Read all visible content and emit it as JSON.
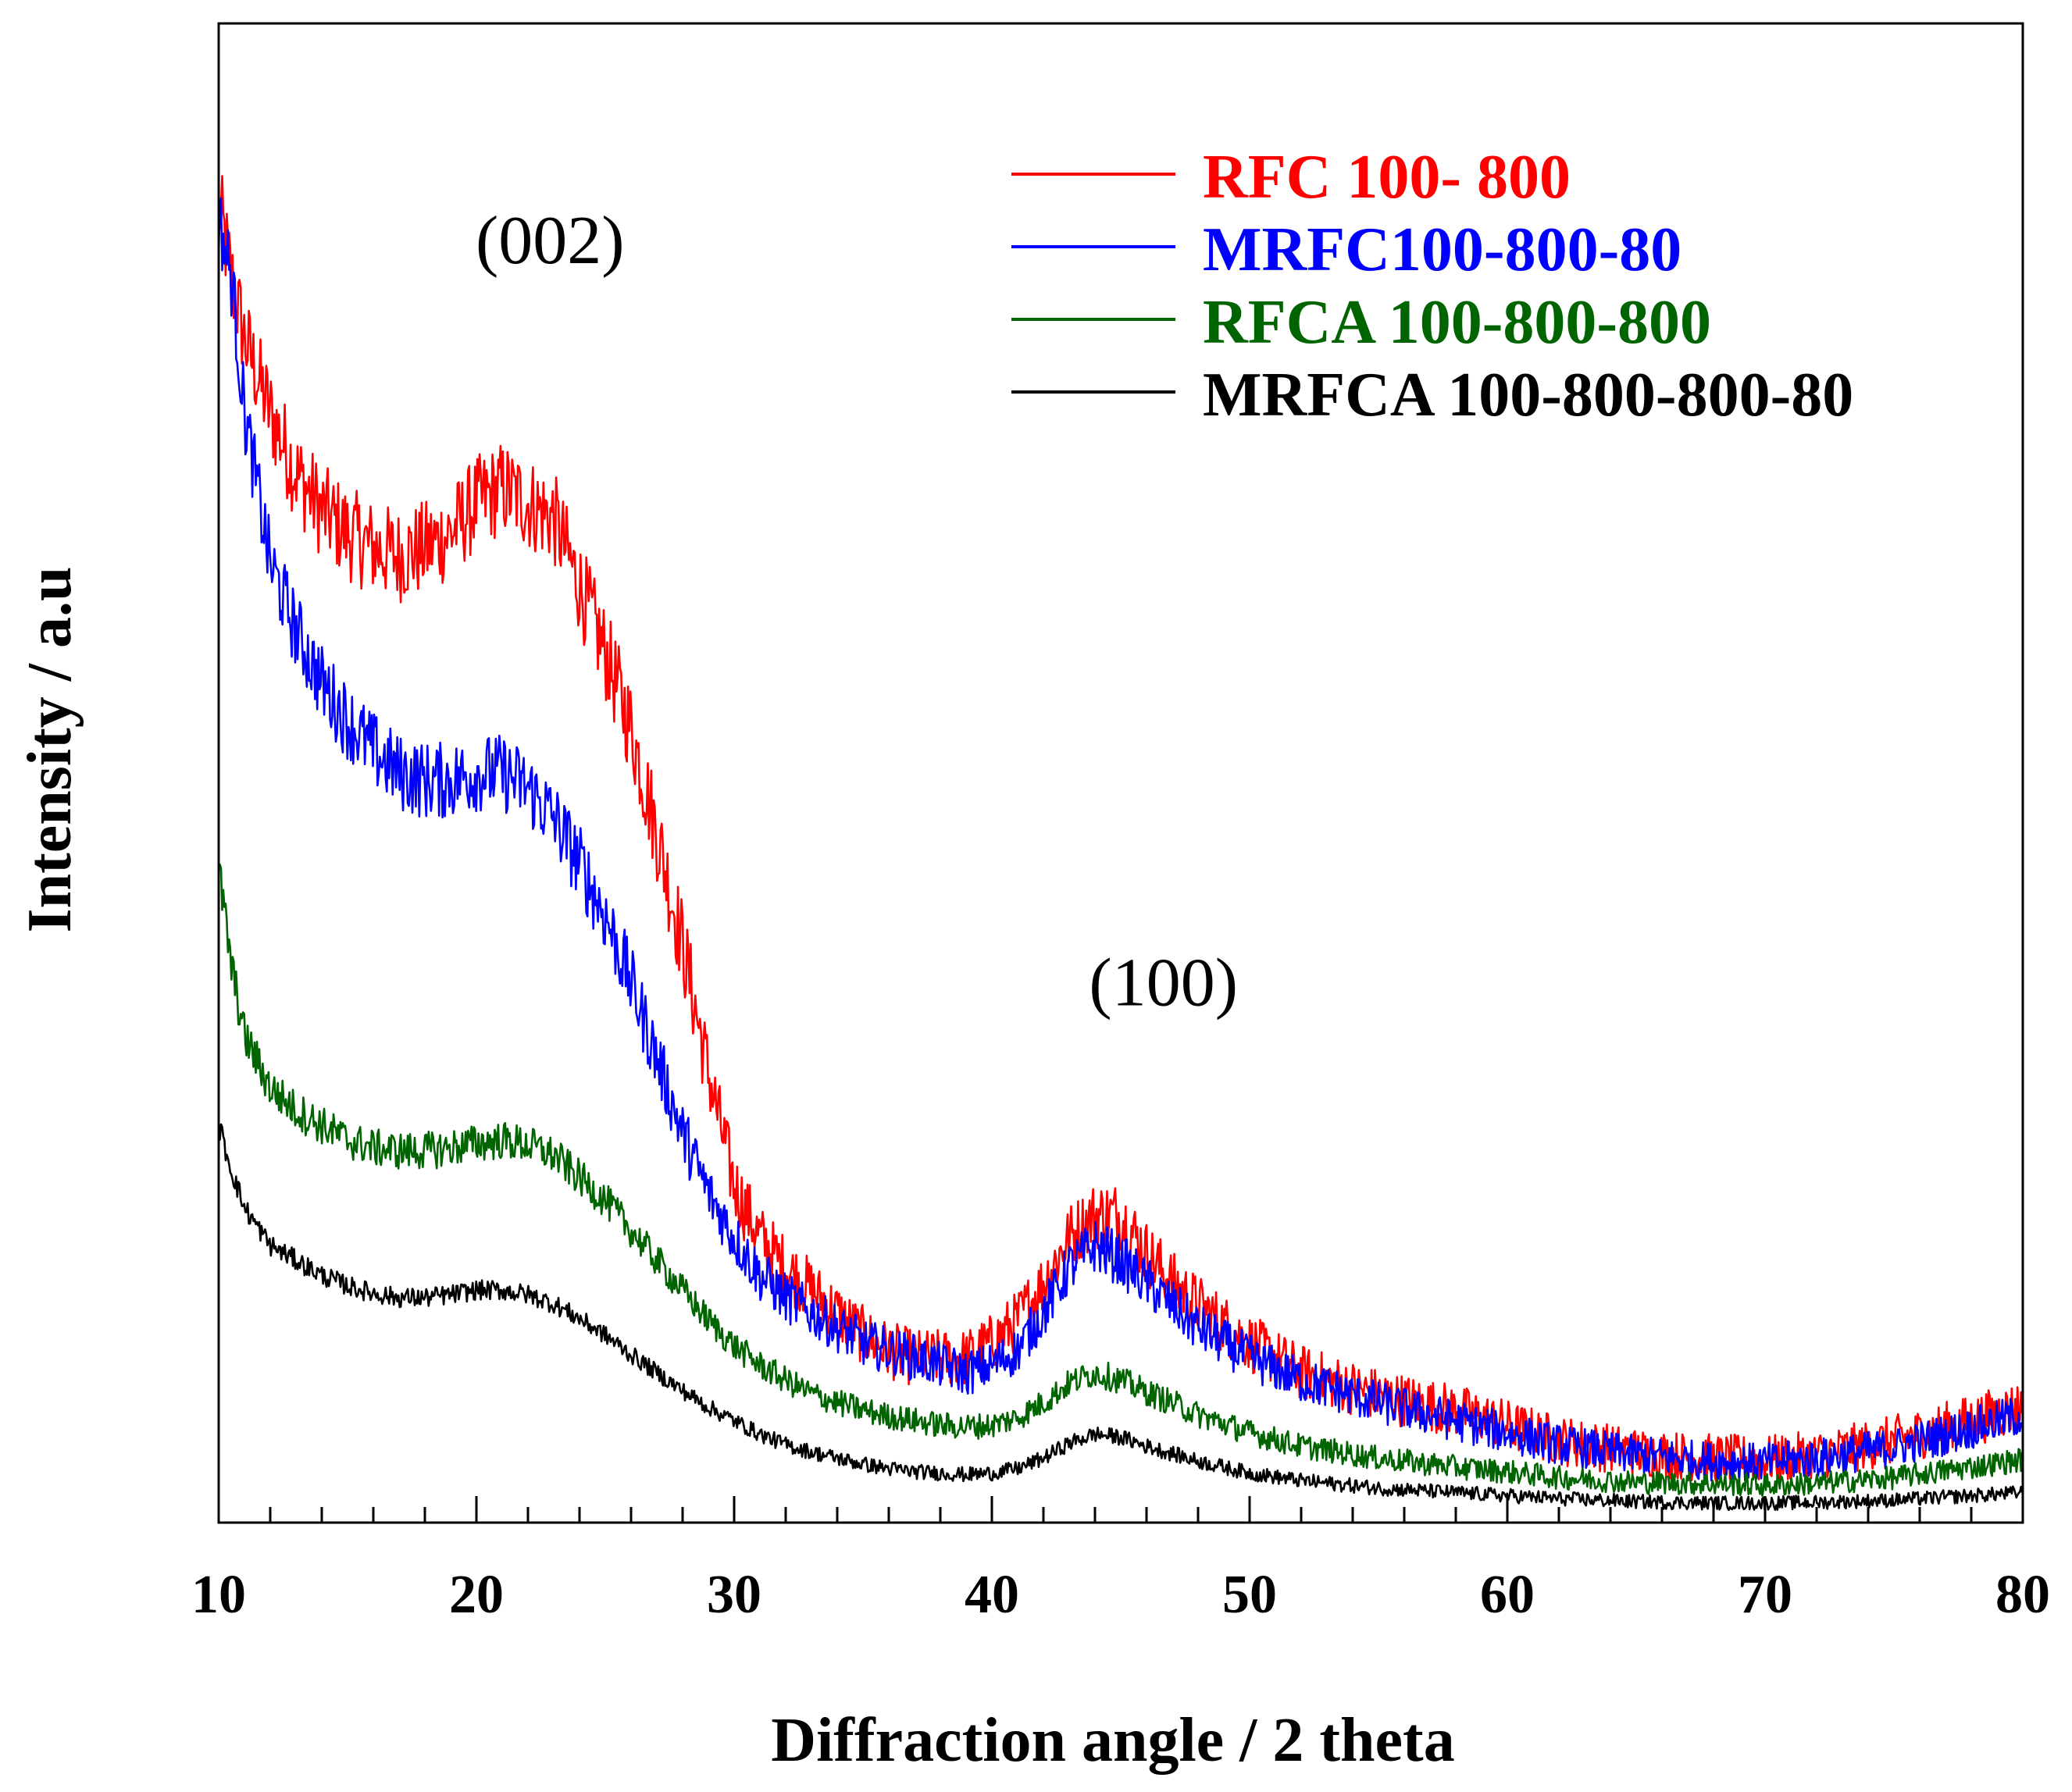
{
  "chart_data": {
    "type": "line",
    "title": "",
    "xlabel": "Diffraction angle / 2 theta",
    "ylabel": "Intensity / a.u",
    "xlim": [
      10,
      80
    ],
    "ylim": [
      0,
      100
    ],
    "x_ticks": [
      10,
      20,
      30,
      40,
      50,
      60,
      70,
      80
    ],
    "x_minor_step": 2,
    "y_ticks_visible": false,
    "legend_position": "top-right",
    "annotations": [
      {
        "text": "(002)",
        "x": 23,
        "y": 84
      },
      {
        "text": "(100)",
        "x": 46.8,
        "y": 34.5
      }
    ],
    "series": [
      {
        "name": "RFC 100- 800",
        "color": "#ff0000",
        "noise": 3.2,
        "x": [
          10,
          10.5,
          11,
          12,
          13,
          14,
          15,
          16,
          17,
          18,
          19,
          20,
          21,
          22,
          23,
          24,
          25,
          26,
          27,
          28,
          29,
          30,
          31,
          32,
          33,
          34,
          35,
          36,
          37,
          38,
          39,
          40,
          41,
          42,
          43,
          44,
          45,
          46,
          47,
          48,
          50,
          52,
          55,
          58,
          60,
          62,
          65,
          68,
          70,
          72,
          75,
          78,
          80
        ],
        "y": [
          88,
          83,
          79,
          74,
          70,
          67.5,
          66,
          65,
          64.5,
          65,
          66,
          68,
          69,
          68,
          67,
          62.5,
          58,
          53,
          46,
          38.5,
          30,
          22.5,
          19,
          17,
          15.5,
          14,
          12.5,
          11.5,
          11,
          11,
          11,
          12,
          13.5,
          16,
          19,
          20.5,
          20.5,
          18,
          16,
          14.5,
          12,
          10,
          8.5,
          7.5,
          6.5,
          5.5,
          4.7,
          4.3,
          4.2,
          4.5,
          5.5,
          6.8,
          7.8
        ]
      },
      {
        "name": "MRFC100-800-80",
        "color": "#0000ff",
        "noise": 2.6,
        "x": [
          10,
          10.5,
          11,
          12,
          13,
          14,
          15,
          16,
          17,
          18,
          19,
          20,
          21,
          22,
          23,
          24,
          25,
          26,
          27,
          28,
          29,
          30,
          31,
          32,
          33,
          34,
          35,
          36,
          37,
          38,
          39,
          40,
          41,
          42,
          43,
          44,
          45,
          46,
          47,
          48,
          50,
          52,
          55,
          58,
          60,
          62,
          65,
          68,
          70,
          72,
          75,
          78,
          80
        ],
        "y": [
          87,
          83,
          74,
          64,
          59.5,
          56,
          53.5,
          51.5,
          50,
          49.5,
          49.5,
          50,
          50,
          49,
          47,
          44,
          40.5,
          36,
          31,
          26,
          22,
          19,
          16.5,
          15,
          14,
          13,
          12,
          11.5,
          11,
          10.5,
          10,
          10.5,
          11.5,
          14,
          17,
          18.5,
          17.5,
          16,
          14.5,
          13,
          11,
          9.5,
          8,
          6.8,
          6,
          5.2,
          4.5,
          4.1,
          4,
          4.3,
          5,
          6.3,
          7.2
        ]
      },
      {
        "name": "RFCA 100-800-800",
        "color": "#006400",
        "noise": 1.6,
        "x": [
          10,
          10.5,
          11,
          12,
          13,
          14,
          15,
          16,
          17,
          18,
          19,
          20,
          21,
          22,
          23,
          24,
          25,
          26,
          27,
          28,
          29,
          30,
          31,
          32,
          33,
          34,
          35,
          36,
          37,
          38,
          39,
          40,
          41,
          42,
          43,
          44,
          45,
          46,
          47,
          48,
          50,
          52,
          55,
          58,
          60,
          62,
          65,
          68,
          70,
          72,
          75,
          78,
          80
        ],
        "y": [
          43.5,
          37,
          32.5,
          29,
          27.5,
          26.5,
          25.5,
          25,
          24.8,
          24.8,
          25,
          25.3,
          25.5,
          25.2,
          24.5,
          23,
          21.5,
          19.5,
          17.5,
          15.5,
          13.5,
          11.8,
          10.5,
          9.5,
          8.6,
          8,
          7.5,
          7.1,
          6.8,
          6.5,
          6.4,
          6.5,
          7,
          8,
          9.3,
          10,
          9.5,
          8.7,
          8,
          7.2,
          6,
          5.1,
          4.3,
          3.7,
          3.4,
          3,
          2.7,
          2.6,
          2.5,
          2.6,
          3,
          3.7,
          4.2
        ]
      },
      {
        "name": "MRFCA 100-800-800-80",
        "color": "#000000",
        "noise": 1.0,
        "x": [
          10,
          10.5,
          11,
          12,
          13,
          14,
          15,
          16,
          17,
          18,
          19,
          20,
          21,
          22,
          23,
          24,
          25,
          26,
          27,
          28,
          29,
          30,
          31,
          32,
          33,
          34,
          35,
          36,
          37,
          38,
          39,
          40,
          41,
          42,
          43,
          44,
          45,
          46,
          47,
          48,
          50,
          52,
          55,
          58,
          60,
          62,
          65,
          68,
          70,
          72,
          75,
          78,
          80
        ],
        "y": [
          26.5,
          23.5,
          21,
          18.5,
          17.5,
          16.5,
          15.8,
          15.3,
          15,
          15,
          15.2,
          15.5,
          15.5,
          15.2,
          14.6,
          13.6,
          12.5,
          11.2,
          10,
          8.8,
          7.7,
          6.8,
          5.9,
          5.2,
          4.7,
          4.3,
          3.9,
          3.6,
          3.4,
          3.3,
          3.2,
          3.3,
          3.6,
          4.3,
          5.3,
          5.9,
          5.7,
          5.1,
          4.6,
          4.1,
          3.3,
          2.8,
          2.3,
          2,
          1.8,
          1.6,
          1.4,
          1.3,
          1.3,
          1.35,
          1.5,
          1.8,
          2
        ]
      }
    ]
  }
}
